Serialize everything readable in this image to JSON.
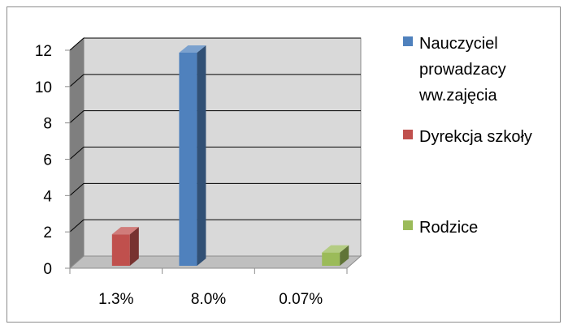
{
  "chart_data": {
    "type": "bar",
    "categories": [
      "1.3%",
      "8.0%",
      "0.07%"
    ],
    "series": [
      {
        "name": "Nauczyciel prowadzacy ww.zajęcia",
        "name_lines": [
          "Nauczyciel",
          "prowadzacy",
          "ww.zajęcia"
        ],
        "color": "#4f81bd",
        "values": [
          0,
          12,
          0
        ]
      },
      {
        "name": "Dyrekcja szkoły",
        "name_lines": [
          "Dyrekcja szkoły"
        ],
        "color": "#c0504d",
        "values": [
          2,
          0,
          0
        ]
      },
      {
        "name": "Rodzice",
        "name_lines": [
          "Rodzice"
        ],
        "color": "#9bbb59",
        "values": [
          0,
          0,
          1
        ]
      }
    ],
    "ylim": [
      0,
      12
    ],
    "y_ticks": [
      "0",
      "2",
      "4",
      "6",
      "8",
      "10",
      "12"
    ],
    "title": "",
    "xlabel": "",
    "ylabel": "",
    "grid": true,
    "legend_position": "right",
    "style": "3d-clustered-column"
  }
}
